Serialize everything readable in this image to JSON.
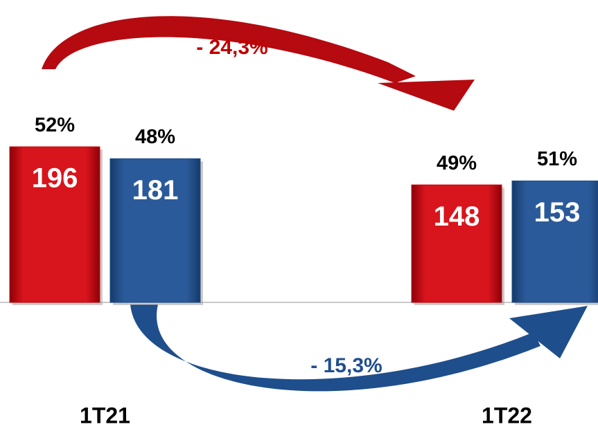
{
  "chart_data": {
    "type": "bar",
    "categories": [
      "1T21",
      "1T22"
    ],
    "series": [
      {
        "color": "#cc0a12",
        "values": [
          196,
          148
        ],
        "shares": [
          52,
          49
        ],
        "share_labels": [
          "52%",
          "49%"
        ]
      },
      {
        "color": "#1f4e8c",
        "values": [
          181,
          153
        ],
        "shares": [
          48,
          51
        ],
        "share_labels": [
          "48%",
          "51%"
        ]
      }
    ],
    "ylim": [
      0,
      380
    ],
    "annotations": [
      "- 24,3%",
      "- 15,3%"
    ]
  }
}
